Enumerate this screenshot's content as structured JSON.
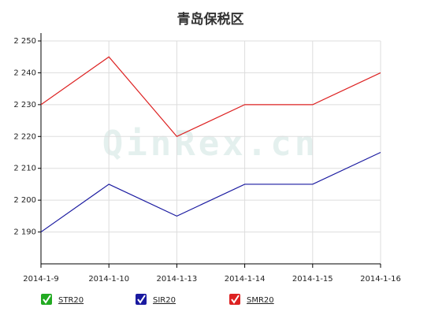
{
  "chart_data": {
    "type": "line",
    "title": "青岛保税区",
    "watermark": "QinRex.cn",
    "categories": [
      "2014-1-9",
      "2014-1-10",
      "2014-1-13",
      "2014-1-14",
      "2014-1-15",
      "2014-1-16"
    ],
    "series": [
      {
        "name": "STR20",
        "color": "#22aa22",
        "values": [
          null,
          null,
          null,
          null,
          null,
          null
        ]
      },
      {
        "name": "SIR20",
        "color": "#1a1aa0",
        "values": [
          2190,
          2205,
          2195,
          2205,
          2205,
          2215
        ]
      },
      {
        "name": "SMR20",
        "color": "#dd2222",
        "values": [
          2230,
          2245,
          2220,
          2230,
          2230,
          2240
        ]
      }
    ],
    "ylim": [
      2180,
      2250
    ],
    "yticks": [
      {
        "value": 2190,
        "label": "2 190"
      },
      {
        "value": 2200,
        "label": "2 200"
      },
      {
        "value": 2210,
        "label": "2 210"
      },
      {
        "value": 2220,
        "label": "2 220"
      },
      {
        "value": 2230,
        "label": "2 230"
      },
      {
        "value": 2240,
        "label": "2 240"
      },
      {
        "value": 2250,
        "label": "2 250"
      }
    ],
    "grid": true
  }
}
